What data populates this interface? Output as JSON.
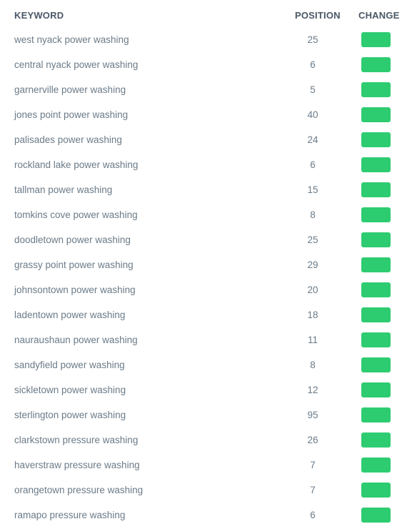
{
  "header": {
    "keyword": "KEYWORD",
    "position": "POSITION",
    "change": "CHANGE"
  },
  "colors": {
    "change_badge": "#2ecc71",
    "header_text": "#4a5866",
    "body_text": "#6b7b88"
  },
  "rows": [
    {
      "keyword": "west nyack power washing",
      "position": "25"
    },
    {
      "keyword": "central nyack power washing",
      "position": "6"
    },
    {
      "keyword": "garnerville power washing",
      "position": "5"
    },
    {
      "keyword": "jones point power washing",
      "position": "40"
    },
    {
      "keyword": "palisades power washing",
      "position": "24"
    },
    {
      "keyword": "rockland lake power washing",
      "position": "6"
    },
    {
      "keyword": "tallman power washing",
      "position": "15"
    },
    {
      "keyword": "tomkins cove power washing",
      "position": "8"
    },
    {
      "keyword": "doodletown power washing",
      "position": "25"
    },
    {
      "keyword": "grassy point power washing",
      "position": "29"
    },
    {
      "keyword": "johnsontown power washing",
      "position": "20"
    },
    {
      "keyword": "ladentown power washing",
      "position": "18"
    },
    {
      "keyword": "nauraushaun power washing",
      "position": "11"
    },
    {
      "keyword": "sandyfield power washing",
      "position": "8"
    },
    {
      "keyword": "sickletown power washing",
      "position": "12"
    },
    {
      "keyword": "sterlington power washing",
      "position": "95"
    },
    {
      "keyword": "clarkstown pressure washing",
      "position": "26"
    },
    {
      "keyword": "haverstraw pressure washing",
      "position": "7"
    },
    {
      "keyword": "orangetown pressure washing",
      "position": "7"
    },
    {
      "keyword": "ramapo pressure washing",
      "position": "6"
    }
  ]
}
